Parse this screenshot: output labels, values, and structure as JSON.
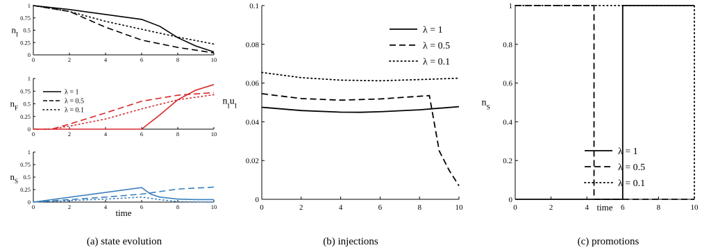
{
  "colors": {
    "black": "#000000",
    "red": "#d62728",
    "blue": "#3a7fbf"
  },
  "styles": {
    "solid": "",
    "dashed": "9,5",
    "dotted": "1.5,4"
  },
  "legend_labels": [
    "λ = 1",
    "λ = 0.5",
    "λ = 0.1"
  ],
  "chart_data": [
    {
      "id": "nI",
      "type": "line",
      "ylabel": "nI",
      "xlabel": "",
      "xlim": [
        0,
        10
      ],
      "ylim": [
        0,
        1
      ],
      "xticks": [
        "0",
        "2",
        "4",
        "6",
        "8",
        "10"
      ],
      "yticks": [
        "0",
        "0.25",
        "0.5",
        "0.75",
        "1"
      ],
      "color": "#000000",
      "series": [
        {
          "style": "solid",
          "x": [
            0,
            2,
            4,
            6,
            7,
            8,
            9,
            10
          ],
          "y": [
            1,
            0.92,
            0.82,
            0.72,
            0.58,
            0.35,
            0.18,
            0.06
          ]
        },
        {
          "style": "dashed",
          "x": [
            0,
            2,
            4,
            6,
            8,
            10
          ],
          "y": [
            1,
            0.88,
            0.56,
            0.3,
            0.15,
            0.04
          ]
        },
        {
          "style": "dotted",
          "x": [
            0,
            2,
            4,
            6,
            8,
            10
          ],
          "y": [
            1,
            0.88,
            0.68,
            0.52,
            0.36,
            0.22
          ]
        }
      ]
    },
    {
      "id": "nF",
      "type": "line",
      "ylabel": "nF",
      "xlabel": "",
      "xlim": [
        0,
        10
      ],
      "ylim": [
        0,
        1
      ],
      "xticks": [
        "0",
        "2",
        "4",
        "6",
        "8",
        "10"
      ],
      "yticks": [
        "0",
        "0.25",
        "0.5",
        "0.75",
        "1"
      ],
      "color": "#d62728",
      "legend": [
        "λ = 1",
        "λ = 0.5",
        "λ = 0.1"
      ],
      "series": [
        {
          "style": "solid",
          "x": [
            0,
            6,
            7,
            8,
            9,
            10
          ],
          "y": [
            0,
            0,
            0.28,
            0.58,
            0.77,
            0.88
          ]
        },
        {
          "style": "dashed",
          "x": [
            0,
            1,
            2,
            4,
            6,
            8,
            10
          ],
          "y": [
            0,
            0,
            0.1,
            0.32,
            0.55,
            0.67,
            0.72
          ]
        },
        {
          "style": "dotted",
          "x": [
            0,
            1,
            2,
            4,
            6,
            8,
            10
          ],
          "y": [
            0,
            0,
            0.06,
            0.2,
            0.4,
            0.58,
            0.68
          ]
        }
      ]
    },
    {
      "id": "nS",
      "type": "line",
      "ylabel": "nS",
      "xlabel": "time",
      "xlim": [
        0,
        10
      ],
      "ylim": [
        0,
        1
      ],
      "xticks": [
        "0",
        "2",
        "4",
        "6",
        "8",
        "10"
      ],
      "yticks": [
        "0",
        "0.25",
        "0.5",
        "0.75",
        "1"
      ],
      "color": "#3a7fbf",
      "series": [
        {
          "style": "solid",
          "x": [
            0,
            6,
            6.5,
            7,
            8,
            9,
            10
          ],
          "y": [
            0,
            0.29,
            0.16,
            0.1,
            0.06,
            0.05,
            0.05
          ]
        },
        {
          "style": "dashed",
          "x": [
            0,
            2,
            4,
            6,
            8,
            10
          ],
          "y": [
            0,
            0.05,
            0.1,
            0.16,
            0.26,
            0.3
          ]
        },
        {
          "style": "dotted",
          "x": [
            0,
            2,
            4,
            6,
            7,
            8,
            10
          ],
          "y": [
            0,
            0.03,
            0.06,
            0.1,
            0.05,
            0.01,
            0
          ]
        }
      ]
    },
    {
      "id": "inj",
      "type": "line",
      "ylabel": "nIuI",
      "xlabel": "",
      "xlim": [
        0,
        10
      ],
      "ylim": [
        0,
        0.1
      ],
      "xticks": [
        "0",
        "2",
        "4",
        "6",
        "8",
        "10"
      ],
      "yticks": [
        "0",
        "0.02",
        "0.04",
        "0.06",
        "0.08",
        "0.1"
      ],
      "color": "#000000",
      "legend": [
        "λ = 1",
        "λ = 0.5",
        "λ = 0.1"
      ],
      "series": [
        {
          "style": "solid",
          "x": [
            0,
            2,
            4,
            5,
            6,
            8,
            10
          ],
          "y": [
            0.0475,
            0.0458,
            0.045,
            0.0449,
            0.0452,
            0.0462,
            0.0478
          ]
        },
        {
          "style": "dashed",
          "x": [
            0,
            2,
            4,
            6,
            8,
            8.5,
            9,
            9.5,
            10
          ],
          "y": [
            0.0545,
            0.052,
            0.0512,
            0.0518,
            0.0532,
            0.0535,
            0.025,
            0.015,
            0.007
          ]
        },
        {
          "style": "dotted",
          "x": [
            0,
            2,
            4,
            6,
            8,
            10
          ],
          "y": [
            0.0655,
            0.0628,
            0.0615,
            0.0612,
            0.0618,
            0.0625
          ]
        }
      ]
    },
    {
      "id": "prom",
      "type": "line",
      "ylabel": "nS",
      "xlabel": "time",
      "xlim": [
        0,
        10
      ],
      "ylim": [
        0,
        1
      ],
      "xticks": [
        "0",
        "2",
        "4",
        "6",
        "8",
        "10"
      ],
      "yticks": [
        "0",
        "0.2",
        "0.4",
        "0.6",
        "0.8",
        "1"
      ],
      "color": "#000000",
      "legend": [
        "λ = 1",
        "λ = 0.5",
        "λ = 0.1"
      ],
      "series": [
        {
          "style": "solid",
          "x": [
            0,
            6,
            6,
            10
          ],
          "y": [
            0,
            0,
            1,
            1
          ]
        },
        {
          "style": "dashed",
          "x": [
            0,
            4.4,
            4.4,
            10
          ],
          "y": [
            1,
            1,
            0,
            0
          ]
        },
        {
          "style": "dotted",
          "x": [
            0,
            10,
            10
          ],
          "y": [
            1,
            1,
            0
          ]
        }
      ]
    }
  ],
  "captions": [
    "(a) state evolution",
    "(b) injections",
    "(c) promotions"
  ]
}
